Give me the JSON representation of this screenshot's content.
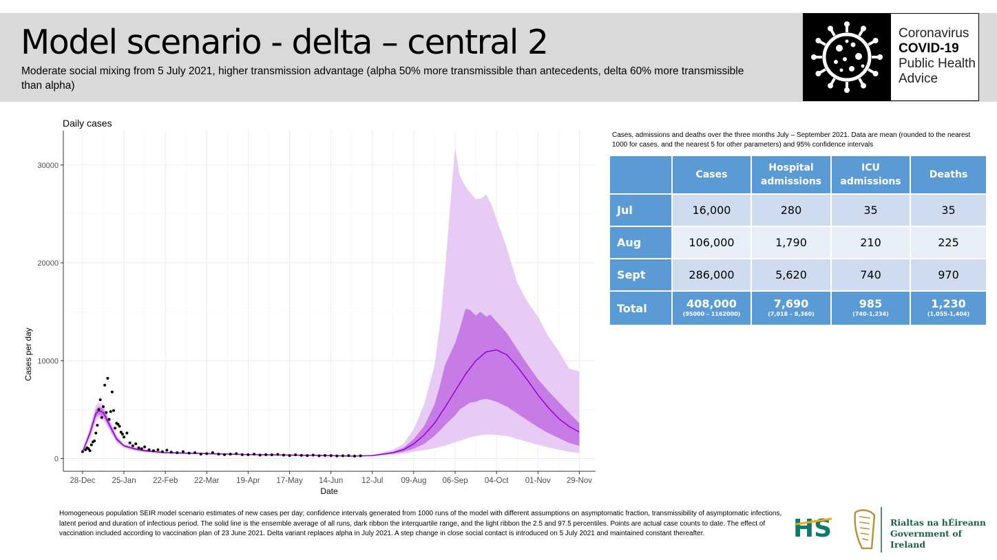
{
  "header": {
    "title": "Model scenario - delta – central 2",
    "subtitle": "Moderate social mixing from 5 July 2021, higher transmission advantage (alpha 50% more transmissible than antecedents, delta 60% more transmissible than alpha)",
    "logo": {
      "line1": "Coronavirus",
      "line2": "COVID-19",
      "line3": "Public Health",
      "line4": "Advice"
    }
  },
  "chart_data": {
    "type": "line",
    "title": "Daily cases",
    "xlabel": "Date",
    "ylabel": "Cases per day",
    "ylim": [
      -1300,
      33500
    ],
    "y_ticks": [
      0,
      10000,
      20000,
      30000
    ],
    "y_tick_labels": [
      "0",
      "10000",
      "20000",
      "30000"
    ],
    "x_ticks": [
      "28-Dec",
      "25-Jan",
      "22-Feb",
      "22-Mar",
      "19-Apr",
      "17-May",
      "14-Jun",
      "12-Jul",
      "09-Aug",
      "06-Sep",
      "04-Oct",
      "01-Nov",
      "29-Nov"
    ],
    "x_range_days": [
      -13,
      347
    ],
    "grid": true,
    "colors": {
      "line": "#9400d3",
      "iqr": "#c77be6",
      "ci95": "#e8cbf5",
      "points": "#000000"
    },
    "series": [
      {
        "kind": "mean",
        "x": [
          0,
          5,
          9,
          11,
          14,
          18,
          23,
          28,
          35,
          42,
          56,
          84,
          112,
          140,
          168,
          182,
          196,
          210,
          217,
          224,
          231,
          238,
          245,
          252,
          259,
          266,
          273,
          280,
          287,
          294,
          301,
          308,
          315,
          322,
          329,
          336
        ],
        "values": [
          700,
          2600,
          4600,
          4900,
          4700,
          3500,
          2000,
          1300,
          1000,
          800,
          600,
          500,
          400,
          350,
          300,
          250,
          300,
          600,
          900,
          1500,
          2400,
          3600,
          5200,
          6900,
          8600,
          10000,
          10900,
          11100,
          10600,
          9400,
          8000,
          6500,
          5200,
          4100,
          3300,
          2700
        ]
      },
      {
        "kind": "ribbon-interquartile",
        "x": [
          0,
          5,
          9,
          11,
          14,
          18,
          23,
          28,
          35,
          42,
          56,
          84,
          112,
          140,
          168,
          182,
          196,
          210,
          217,
          224,
          231,
          238,
          242,
          245,
          252,
          255,
          259,
          262,
          266,
          269,
          273,
          276,
          280,
          287,
          294,
          301,
          308,
          315,
          322,
          329,
          336
        ],
        "low": [
          600,
          2300,
          4200,
          4500,
          4300,
          3200,
          1800,
          1200,
          900,
          700,
          550,
          450,
          380,
          330,
          280,
          240,
          280,
          500,
          700,
          1000,
          1500,
          2300,
          2900,
          3400,
          4400,
          5000,
          5400,
          5700,
          5800,
          6000,
          6100,
          6000,
          5800,
          5300,
          4600,
          3900,
          3200,
          2600,
          2100,
          1600,
          1300
        ],
        "high": [
          800,
          2900,
          5000,
          5300,
          5100,
          3800,
          2200,
          1400,
          1100,
          900,
          650,
          550,
          420,
          380,
          320,
          260,
          330,
          700,
          1100,
          2000,
          3300,
          5500,
          7600,
          9500,
          11800,
          13200,
          15300,
          15200,
          14600,
          15000,
          14500,
          14700,
          14000,
          12800,
          11200,
          9600,
          8100,
          6900,
          5800,
          4700,
          3600
        ]
      },
      {
        "kind": "ribbon-2.5-97.5",
        "x": [
          0,
          5,
          9,
          11,
          14,
          18,
          23,
          28,
          35,
          42,
          56,
          84,
          112,
          140,
          168,
          182,
          196,
          210,
          217,
          224,
          231,
          238,
          242,
          245,
          249,
          252,
          255,
          259,
          262,
          266,
          270,
          273,
          277,
          280,
          287,
          294,
          301,
          308,
          315,
          322,
          329,
          336
        ],
        "low": [
          500,
          2000,
          3800,
          4100,
          3900,
          2900,
          1600,
          1100,
          800,
          650,
          500,
          420,
          350,
          300,
          260,
          230,
          250,
          400,
          500,
          700,
          850,
          1050,
          1200,
          1300,
          1500,
          1650,
          1800,
          2000,
          2150,
          2300,
          2400,
          2450,
          2450,
          2400,
          2300,
          2000,
          1700,
          1400,
          1150,
          900,
          700,
          550
        ],
        "high": [
          900,
          3200,
          5400,
          5700,
          5500,
          4100,
          2400,
          1500,
          1200,
          950,
          700,
          600,
          460,
          420,
          360,
          280,
          360,
          900,
          1500,
          3000,
          5500,
          9500,
          14000,
          19000,
          26500,
          31800,
          29000,
          27800,
          27200,
          26500,
          26600,
          27000,
          25800,
          24500,
          21500,
          18000,
          16000,
          14500,
          12500,
          11000,
          9200,
          8900
        ]
      },
      {
        "kind": "observed-points",
        "x": [
          0,
          2,
          3,
          4,
          5,
          6,
          7,
          8,
          9,
          10,
          11,
          12,
          13,
          14,
          15,
          16,
          17,
          18,
          19,
          20,
          21,
          22,
          23,
          24,
          25,
          26,
          27,
          28,
          30,
          32,
          34,
          36,
          38,
          40,
          42,
          45,
          48,
          51,
          54,
          57,
          60,
          64,
          68,
          72,
          76,
          80,
          84,
          88,
          92,
          96,
          100,
          104,
          108,
          112,
          116,
          120,
          124,
          128,
          132,
          136,
          140,
          144,
          148,
          152,
          156,
          160,
          164,
          168,
          172,
          176,
          180,
          184,
          188
        ],
        "values": [
          700,
          900,
          1100,
          1000,
          800,
          1400,
          1700,
          1800,
          2600,
          3400,
          5000,
          6000,
          4200,
          5300,
          7500,
          4700,
          8200,
          4000,
          4800,
          6800,
          4900,
          3100,
          3600,
          3500,
          3300,
          2700,
          2500,
          2200,
          2600,
          1600,
          1300,
          1500,
          1100,
          1000,
          1200,
          900,
          800,
          900,
          700,
          850,
          650,
          600,
          700,
          550,
          600,
          450,
          500,
          600,
          450,
          400,
          450,
          500,
          400,
          400,
          450,
          350,
          400,
          380,
          420,
          350,
          300,
          380,
          330,
          300,
          350,
          280,
          320,
          300,
          260,
          280,
          300,
          250,
          280
        ]
      }
    ]
  },
  "table": {
    "caption": "Cases, admissions and deaths over the three months July – September 2021. Data are mean (rounded to the nearest 1000 for cases, and the nearest 5 for other parameters) and 95% confidence intervals",
    "headers": [
      "",
      "Cases",
      "Hospital admissions",
      "ICU admissions",
      "Deaths"
    ],
    "rows": [
      {
        "label": "Jul",
        "values": [
          "16,000",
          "280",
          "35",
          "35"
        ]
      },
      {
        "label": "Aug",
        "values": [
          "106,000",
          "1,790",
          "210",
          "225"
        ]
      },
      {
        "label": "Sept",
        "values": [
          "286,000",
          "5,620",
          "740",
          "970"
        ]
      }
    ],
    "total": {
      "label": "Total",
      "values": [
        "408,000",
        "7,690",
        "985",
        "1,230"
      ],
      "ci": [
        "(95000 – 1162000)",
        "(7,018 – 8,360)",
        "(740-1,234)",
        "(1,055-1,404)"
      ]
    }
  },
  "footnote": "Homogeneous population SEIR model scenario estimates of new cases per day; confidence intervals generated from 1000 runs of the model with different assumptions on asymptomatic fraction, transmissibility of asymptomatic infections, latent period and duration of infectious period.  The solid line is the ensemble average of all runs, dark ribbon the interquartile range, and the light ribbon the 2.5 and 97.5 percentiles. Points are actual case counts to date. The effect of vaccination included according to vaccination plan of 23 June 2021. Delta variant replaces alpha in July 2021. A step change in close social contact is introduced on 5 July 2021 and maintained constant thereafter.",
  "footer": {
    "hse_logo": "HSE",
    "gov_line1": "Rialtas na hÉireann",
    "gov_line2": "Government of Ireland"
  }
}
